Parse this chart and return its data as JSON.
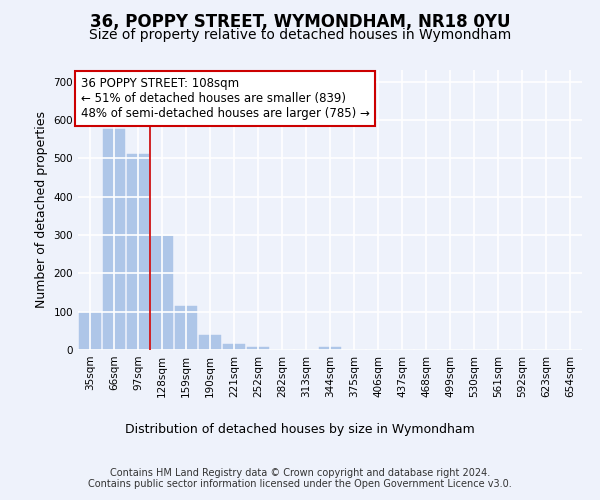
{
  "title": "36, POPPY STREET, WYMONDHAM, NR18 0YU",
  "subtitle": "Size of property relative to detached houses in Wymondham",
  "xlabel": "Distribution of detached houses by size in Wymondham",
  "ylabel": "Number of detached properties",
  "categories": [
    "35sqm",
    "66sqm",
    "97sqm",
    "128sqm",
    "159sqm",
    "190sqm",
    "221sqm",
    "252sqm",
    "282sqm",
    "313sqm",
    "344sqm",
    "375sqm",
    "406sqm",
    "437sqm",
    "468sqm",
    "499sqm",
    "530sqm",
    "561sqm",
    "592sqm",
    "623sqm",
    "654sqm"
  ],
  "values": [
    100,
    575,
    510,
    298,
    115,
    38,
    15,
    8,
    0,
    0,
    7,
    0,
    0,
    0,
    0,
    0,
    0,
    0,
    0,
    0,
    0
  ],
  "bar_color": "#aec6e8",
  "bar_edge_color": "#aec6e8",
  "vline_x": 2.5,
  "vline_color": "#cc0000",
  "annotation_text": "36 POPPY STREET: 108sqm\n← 51% of detached houses are smaller (839)\n48% of semi-detached houses are larger (785) →",
  "annotation_box_color": "white",
  "annotation_box_edgecolor": "#cc0000",
  "ylim": [
    0,
    730
  ],
  "yticks": [
    0,
    100,
    200,
    300,
    400,
    500,
    600,
    700
  ],
  "footer": "Contains HM Land Registry data © Crown copyright and database right 2024.\nContains public sector information licensed under the Open Government Licence v3.0.",
  "bg_color": "#eef2fb",
  "plot_bg_color": "#eef2fb",
  "grid_color": "white",
  "title_fontsize": 12,
  "subtitle_fontsize": 10,
  "axis_label_fontsize": 9,
  "tick_fontsize": 7.5,
  "annotation_fontsize": 8.5,
  "footer_fontsize": 7
}
